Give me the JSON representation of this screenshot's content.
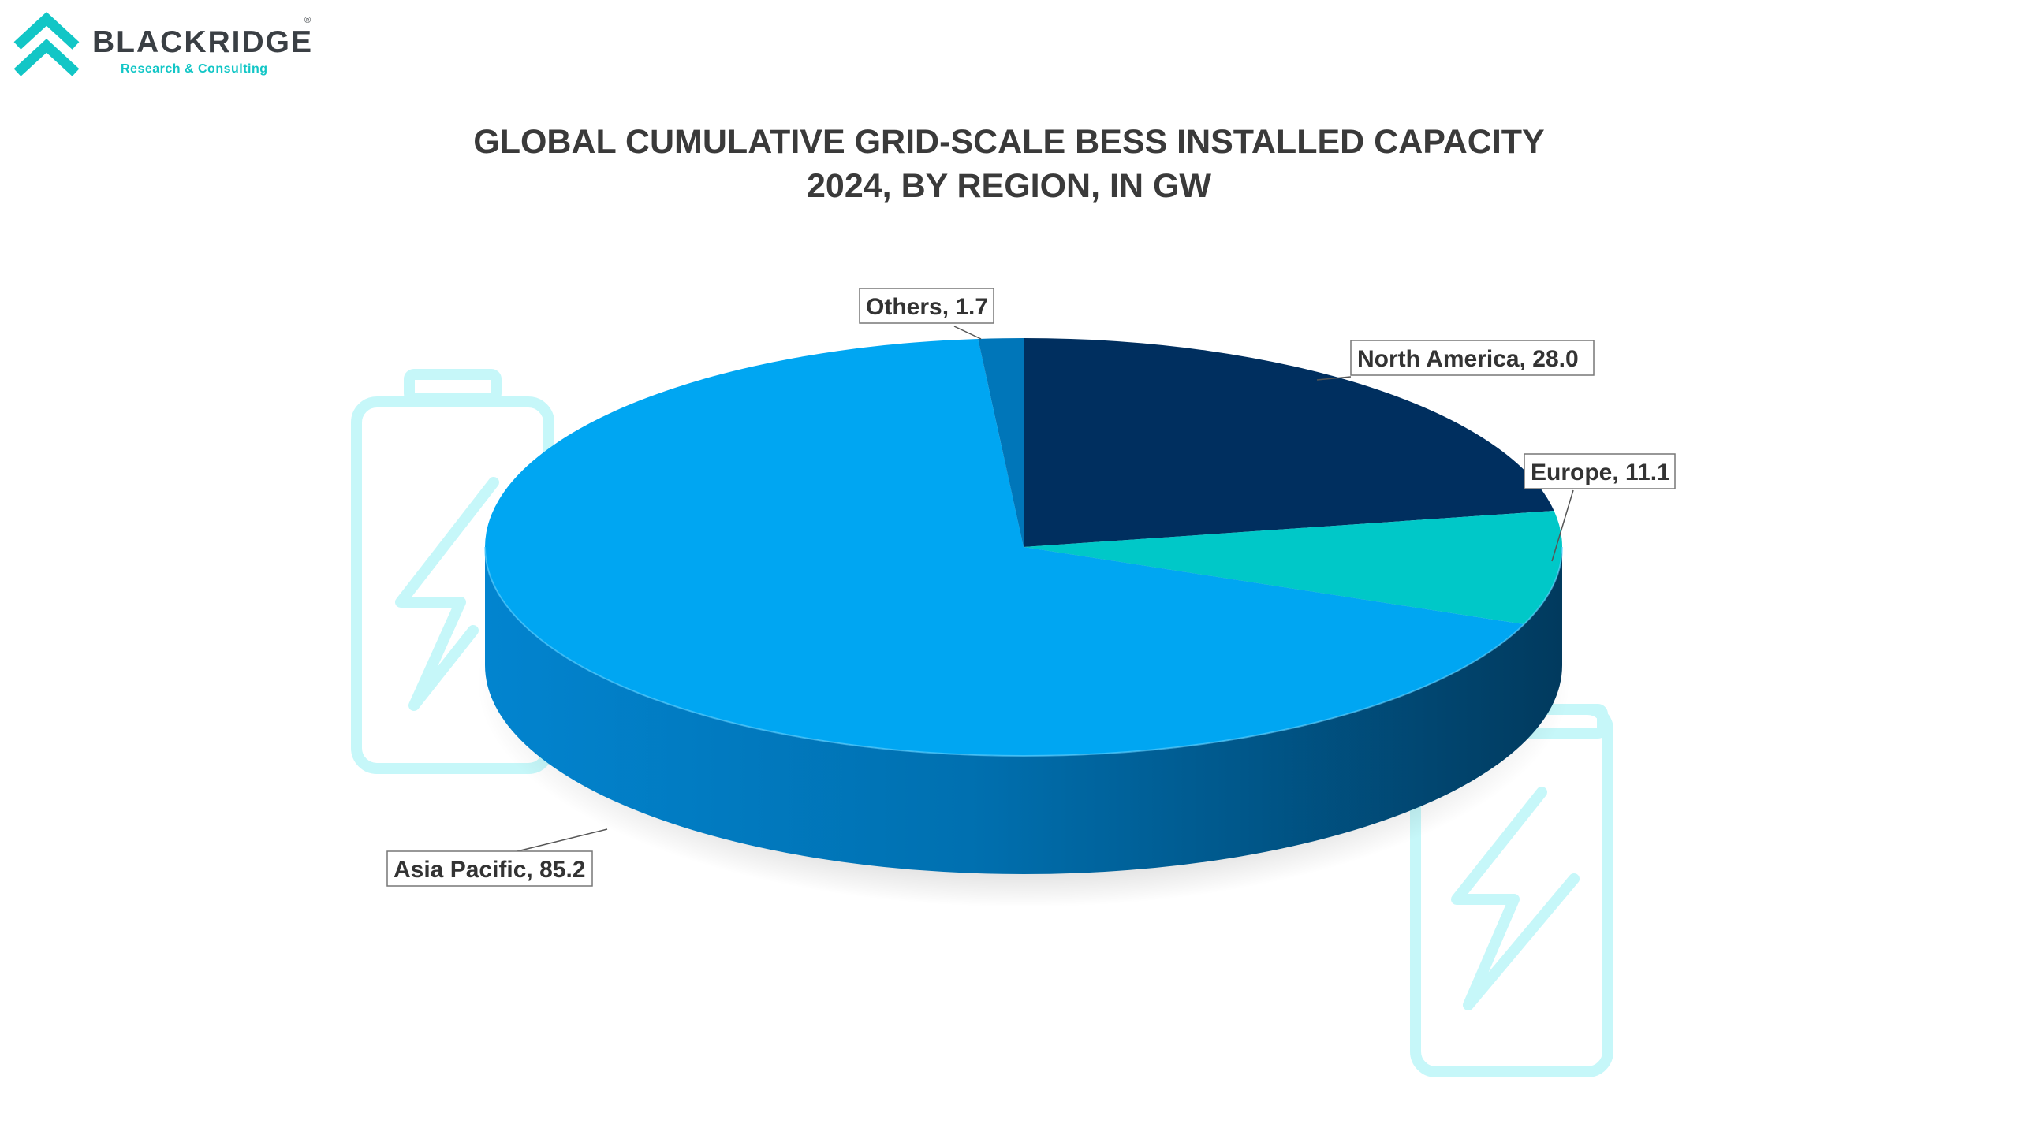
{
  "logo": {
    "name": "BLACKRIDGE",
    "registered_mark": "®",
    "tagline": "Research & Consulting"
  },
  "colors": {
    "accent_teal": "#12c6c6",
    "battery_outline": "#c6f7f9",
    "text_dark": "#3a3a3a"
  },
  "icons": [
    "blackridge-chevron-logo-icon",
    "battery-lightning-icon",
    "battery-lightning-icon"
  ],
  "chart_data": {
    "type": "pie",
    "style": "3d",
    "title": "GLOBAL CUMULATIVE GRID-SCALE BESS INSTALLED CAPACITY",
    "subtitle": "2024, BY REGION, IN GW",
    "legend": "none",
    "slices": [
      {
        "label": "North America",
        "value": 28.0,
        "display": "North America, 28.0",
        "color": "#002f5f"
      },
      {
        "label": "Europe",
        "value": 11.1,
        "display": "Europe, 11.1",
        "color": "#00c8c8"
      },
      {
        "label": "Asia Pacific",
        "value": 85.2,
        "display": "Asia Pacific, 85.2",
        "color": "#00a6f2"
      },
      {
        "label": "Others",
        "value": 1.7,
        "display": "Others, 1.7",
        "color": "#0076b9"
      }
    ]
  }
}
